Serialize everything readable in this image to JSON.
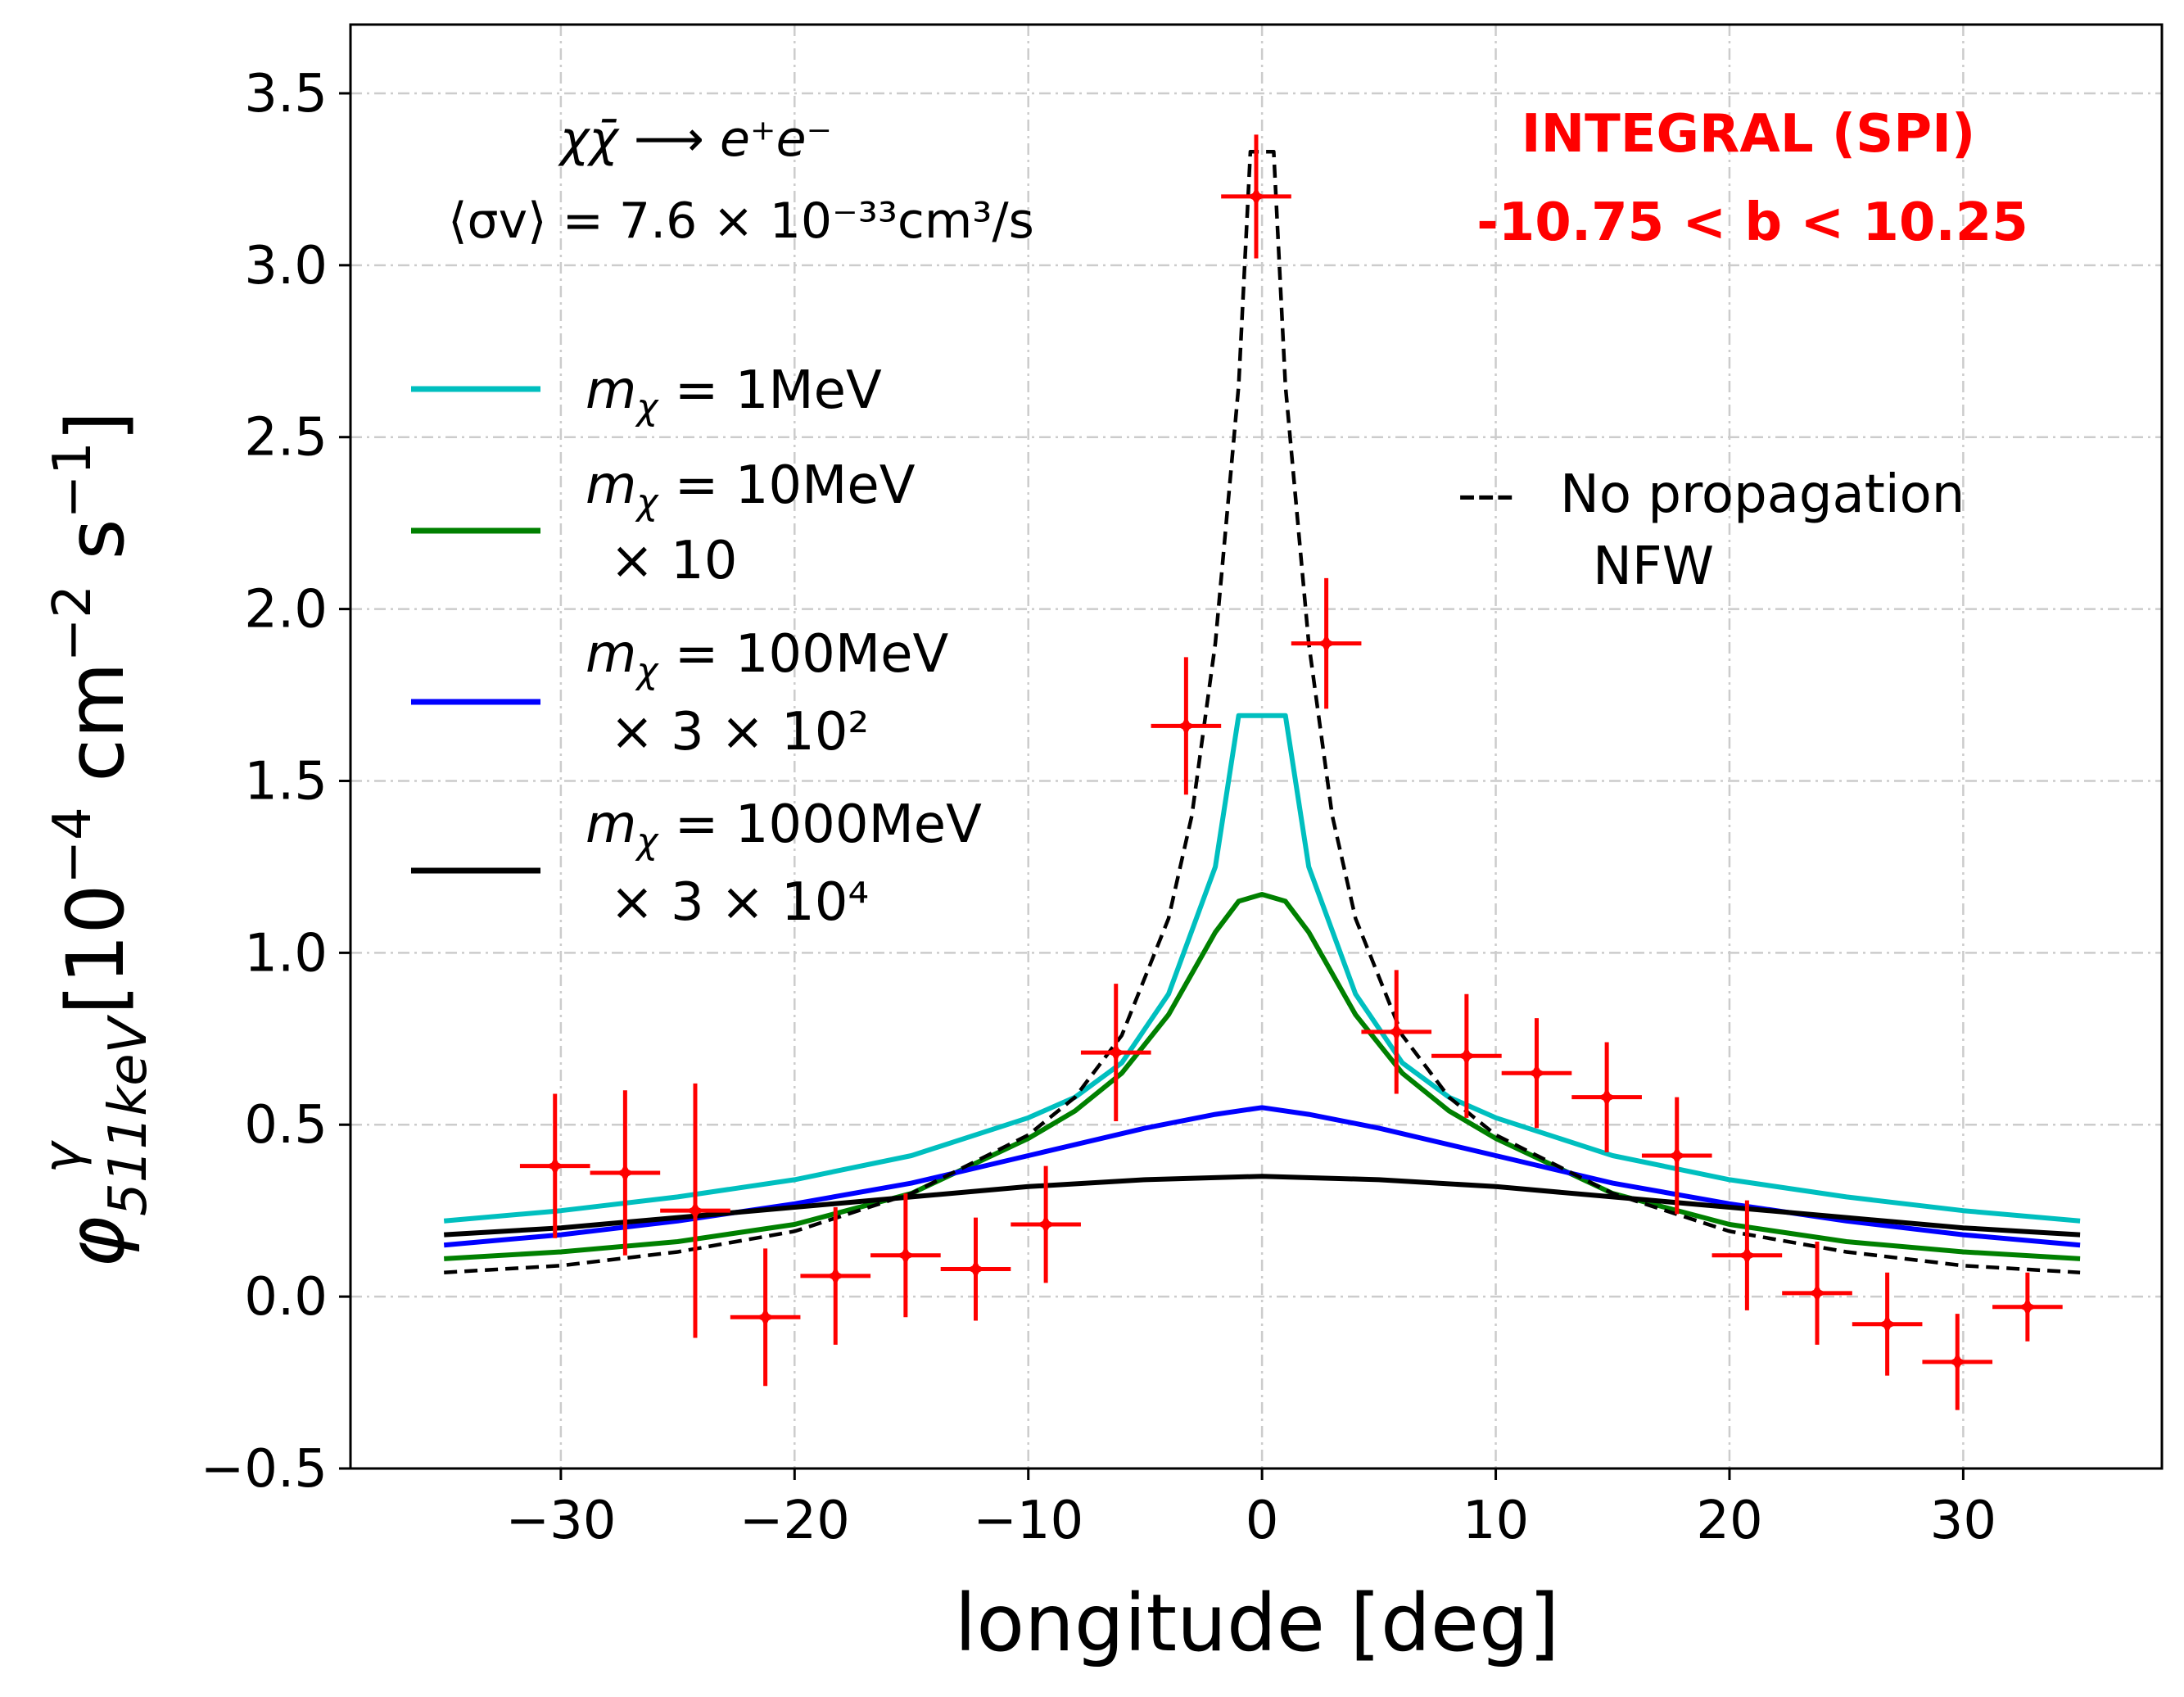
{
  "chart_data": {
    "type": "line",
    "xlabel": "longitude [deg]",
    "ylabel": {
      "symbol": "φ",
      "superscript": "γ",
      "subscript": "511keV",
      "units_base": " [10",
      "units_exp1": "−4",
      "units_mid": " cm",
      "units_exp2": "−2",
      "units_mid2": " s",
      "units_exp3": "−1",
      "units_end": "]"
    },
    "xlim": [
      -39,
      38.5
    ],
    "ylim": [
      -0.5,
      3.7
    ],
    "xticks": [
      -30,
      -20,
      -10,
      0,
      10,
      20,
      30
    ],
    "xtick_labels": [
      "−30",
      "−20",
      "−10",
      "0",
      "10",
      "20",
      "30"
    ],
    "yticks": [
      -0.5,
      0.0,
      0.5,
      1.0,
      1.5,
      2.0,
      2.5,
      3.0,
      3.5
    ],
    "ytick_labels": [
      "−0.5",
      "0.0",
      "0.5",
      "1.0",
      "1.5",
      "2.0",
      "2.5",
      "3.0",
      "3.5"
    ],
    "grid": true,
    "annotations": {
      "process": "χχ̄ ⟶ e⁺e⁻",
      "cross_section": "⟨σv⟩ = 7.6 × 10⁻³³cm³/s",
      "instrument": "INTEGRAL (SPI)",
      "latitude_range": "-10.75 < b < 10.25"
    },
    "legend_left": {
      "placement": "center-left",
      "entries": [
        {
          "line1": "m",
          "sub": "χ",
          "rest": " = 1MeV",
          "line2": ""
        },
        {
          "line1": "m",
          "sub": "χ",
          "rest": " = 10MeV",
          "line2": "× 10"
        },
        {
          "line1": "m",
          "sub": "χ",
          "rest": " = 100MeV",
          "line2": "× 3 × 10²"
        },
        {
          "line1": "m",
          "sub": "χ",
          "rest": " = 1000MeV",
          "line2": "× 3 × 10⁴"
        }
      ]
    },
    "legend_right": {
      "placement": "center-right",
      "marker": "---",
      "line1": "No propagation",
      "line2": "NFW"
    },
    "series": [
      {
        "key": "m1",
        "color": "#00bfbf",
        "style": "solid",
        "x": [
          -35,
          -30,
          -25,
          -20,
          -15,
          -10,
          -8,
          -6,
          -4,
          -2,
          -1,
          1,
          2,
          4,
          6,
          8,
          10,
          15,
          20,
          25,
          30,
          35
        ],
        "y": [
          0.22,
          0.25,
          0.29,
          0.34,
          0.41,
          0.52,
          0.58,
          0.68,
          0.88,
          1.25,
          1.69,
          1.69,
          1.25,
          0.88,
          0.68,
          0.58,
          0.52,
          0.41,
          0.34,
          0.29,
          0.25,
          0.22
        ]
      },
      {
        "key": "m10",
        "color": "#008000",
        "style": "solid",
        "x": [
          -35,
          -30,
          -25,
          -20,
          -15,
          -10,
          -8,
          -6,
          -4,
          -2,
          -1,
          0,
          1,
          2,
          4,
          6,
          8,
          10,
          15,
          20,
          25,
          30,
          35
        ],
        "y": [
          0.11,
          0.13,
          0.16,
          0.21,
          0.3,
          0.46,
          0.54,
          0.65,
          0.82,
          1.06,
          1.15,
          1.17,
          1.15,
          1.06,
          0.82,
          0.65,
          0.54,
          0.46,
          0.3,
          0.21,
          0.16,
          0.13,
          0.11
        ]
      },
      {
        "key": "m100",
        "color": "#0000ff",
        "style": "solid",
        "x": [
          -35,
          -30,
          -25,
          -20,
          -15,
          -10,
          -5,
          -2,
          0,
          2,
          5,
          10,
          15,
          20,
          25,
          30,
          35
        ],
        "y": [
          0.15,
          0.18,
          0.22,
          0.27,
          0.33,
          0.41,
          0.49,
          0.53,
          0.55,
          0.53,
          0.49,
          0.41,
          0.33,
          0.27,
          0.22,
          0.18,
          0.15
        ]
      },
      {
        "key": "m1000",
        "color": "#000000",
        "style": "solid",
        "x": [
          -35,
          -30,
          -25,
          -20,
          -15,
          -10,
          -5,
          0,
          5,
          10,
          15,
          20,
          25,
          30,
          35
        ],
        "y": [
          0.18,
          0.2,
          0.23,
          0.26,
          0.29,
          0.32,
          0.34,
          0.35,
          0.34,
          0.32,
          0.29,
          0.26,
          0.23,
          0.2,
          0.18
        ]
      },
      {
        "key": "nfw",
        "color": "#000000",
        "style": "dashed",
        "x": [
          -35,
          -30,
          -25,
          -20,
          -15,
          -10,
          -8,
          -6,
          -4,
          -3,
          -2,
          -1,
          -0.5,
          0.5,
          1,
          2,
          3,
          4,
          6,
          8,
          10,
          15,
          20,
          25,
          30,
          35
        ],
        "y": [
          0.07,
          0.09,
          0.13,
          0.19,
          0.3,
          0.47,
          0.58,
          0.76,
          1.1,
          1.4,
          1.9,
          2.65,
          3.33,
          3.33,
          2.65,
          1.9,
          1.4,
          1.1,
          0.76,
          0.58,
          0.47,
          0.3,
          0.19,
          0.13,
          0.09,
          0.07
        ]
      }
    ],
    "data_points": {
      "color": "#ff0000",
      "x": [
        -30.25,
        -27.25,
        -24.25,
        -21.25,
        -18.25,
        -15.25,
        -12.25,
        -9.25,
        -6.25,
        -3.25,
        -0.25,
        2.75,
        5.75,
        8.75,
        11.75,
        14.75,
        17.75,
        20.75,
        23.75,
        26.75,
        29.75,
        32.75
      ],
      "y": [
        0.38,
        0.36,
        0.25,
        -0.06,
        0.06,
        0.12,
        0.08,
        0.21,
        0.71,
        1.66,
        3.2,
        1.9,
        0.77,
        0.7,
        0.65,
        0.58,
        0.41,
        0.12,
        0.01,
        -0.08,
        -0.19,
        -0.03
      ],
      "yerr": [
        0.21,
        0.24,
        0.37,
        0.2,
        0.2,
        0.18,
        0.15,
        0.17,
        0.2,
        0.2,
        0.18,
        0.19,
        0.18,
        0.18,
        0.16,
        0.16,
        0.17,
        0.16,
        0.15,
        0.15,
        0.14,
        0.1
      ],
      "xerr": 1.5
    }
  }
}
